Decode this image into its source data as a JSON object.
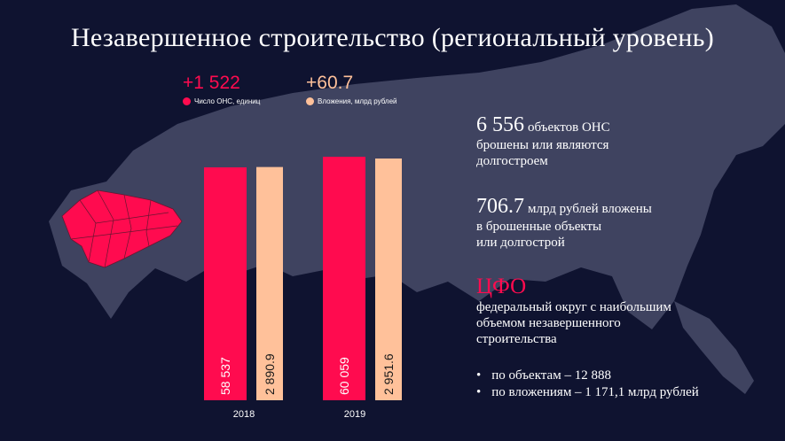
{
  "title": "Незавершенное строительство (региональный уровень)",
  "deltas": {
    "ons": "+1 522",
    "investments": "+60.7"
  },
  "legend": {
    "ons": "Число ОНС, единиц",
    "investments": "Вложения, млрд рублей"
  },
  "colors": {
    "background": "#0f1330",
    "map": "#3f4360",
    "highlight_region": "#ff0b4f",
    "ons": "#ff0b4f",
    "investments": "#ffc19a"
  },
  "chart_data": {
    "type": "bar",
    "categories": [
      "2018",
      "2019"
    ],
    "series": [
      {
        "name": "Число ОНС, единиц",
        "values": [
          58537,
          60059
        ],
        "labels": [
          "58 537",
          "60 059"
        ],
        "color": "#ff0b4f"
      },
      {
        "name": "Вложения, млрд рублей",
        "values": [
          2890.9,
          2951.6
        ],
        "labels": [
          "2 890.9",
          "2 951.6"
        ],
        "color": "#ffc19a"
      }
    ],
    "title": "",
    "xlabel": "",
    "ylabel": ""
  },
  "facts": {
    "objects_value": "6 556",
    "objects_unit": "объектов ОНС",
    "objects_desc_1": "брошены или являются",
    "objects_desc_2": "долгостроем",
    "invest_value": "706.7",
    "invest_unit": "млрд рублей вложены",
    "invest_desc_1": "в брошенные объекты",
    "invest_desc_2": "или долгострой",
    "district": "ЦФО",
    "district_desc_1": "федеральный округ с наибольшим",
    "district_desc_2": "объемом незавершенного",
    "district_desc_3": "строительства",
    "bullets": [
      "по объектам – 12 888",
      "по вложениям – 1 171,1 млрд рублей"
    ]
  }
}
